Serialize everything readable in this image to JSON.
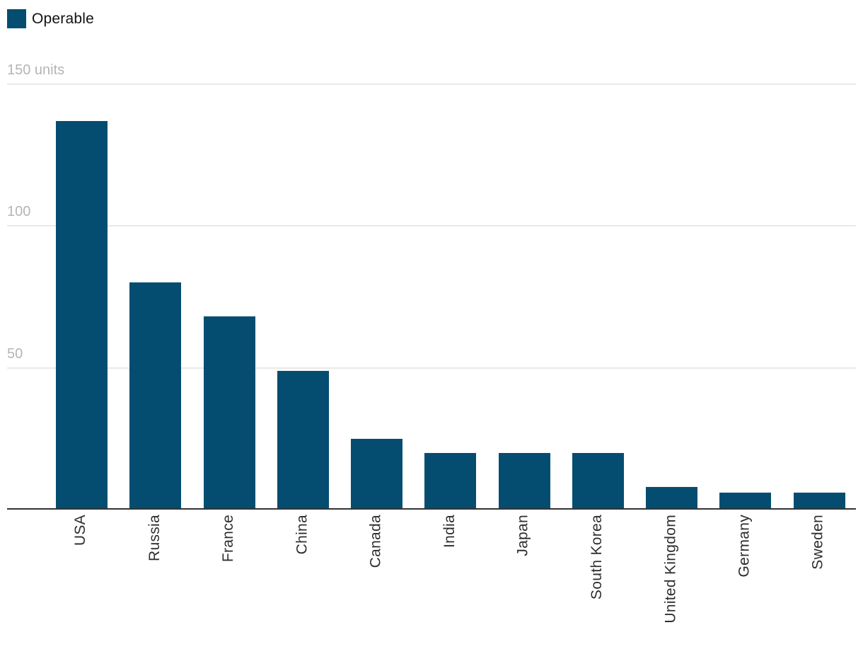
{
  "legend": {
    "items": [
      {
        "label": "Operable",
        "color": "#054d70"
      }
    ]
  },
  "chart_data": {
    "type": "bar",
    "categories": [
      "USA",
      "Russia",
      "France",
      "China",
      "Canada",
      "India",
      "Japan",
      "South Korea",
      "United Kingdom",
      "Germany",
      "Sweden"
    ],
    "series": [
      {
        "name": "Operable",
        "values": [
          137,
          80,
          68,
          49,
          25,
          20,
          20,
          20,
          8,
          6,
          6
        ]
      }
    ],
    "title": "",
    "xlabel": "",
    "ylabel": "units",
    "ylim": [
      0,
      150
    ],
    "yticks": [
      {
        "value": 150,
        "label": "150 units"
      },
      {
        "value": 100,
        "label": "100"
      },
      {
        "value": 50,
        "label": "50"
      }
    ],
    "grid": true,
    "legend_position": "top-left",
    "colors": {
      "bar": "#054d70",
      "gridline": "#e9e9e9",
      "axis_line": "#333333",
      "ytick_text": "#b5b5b5",
      "xtick_text": "#2e2e2e",
      "legend_text": "#111111",
      "background": "#ffffff"
    }
  }
}
